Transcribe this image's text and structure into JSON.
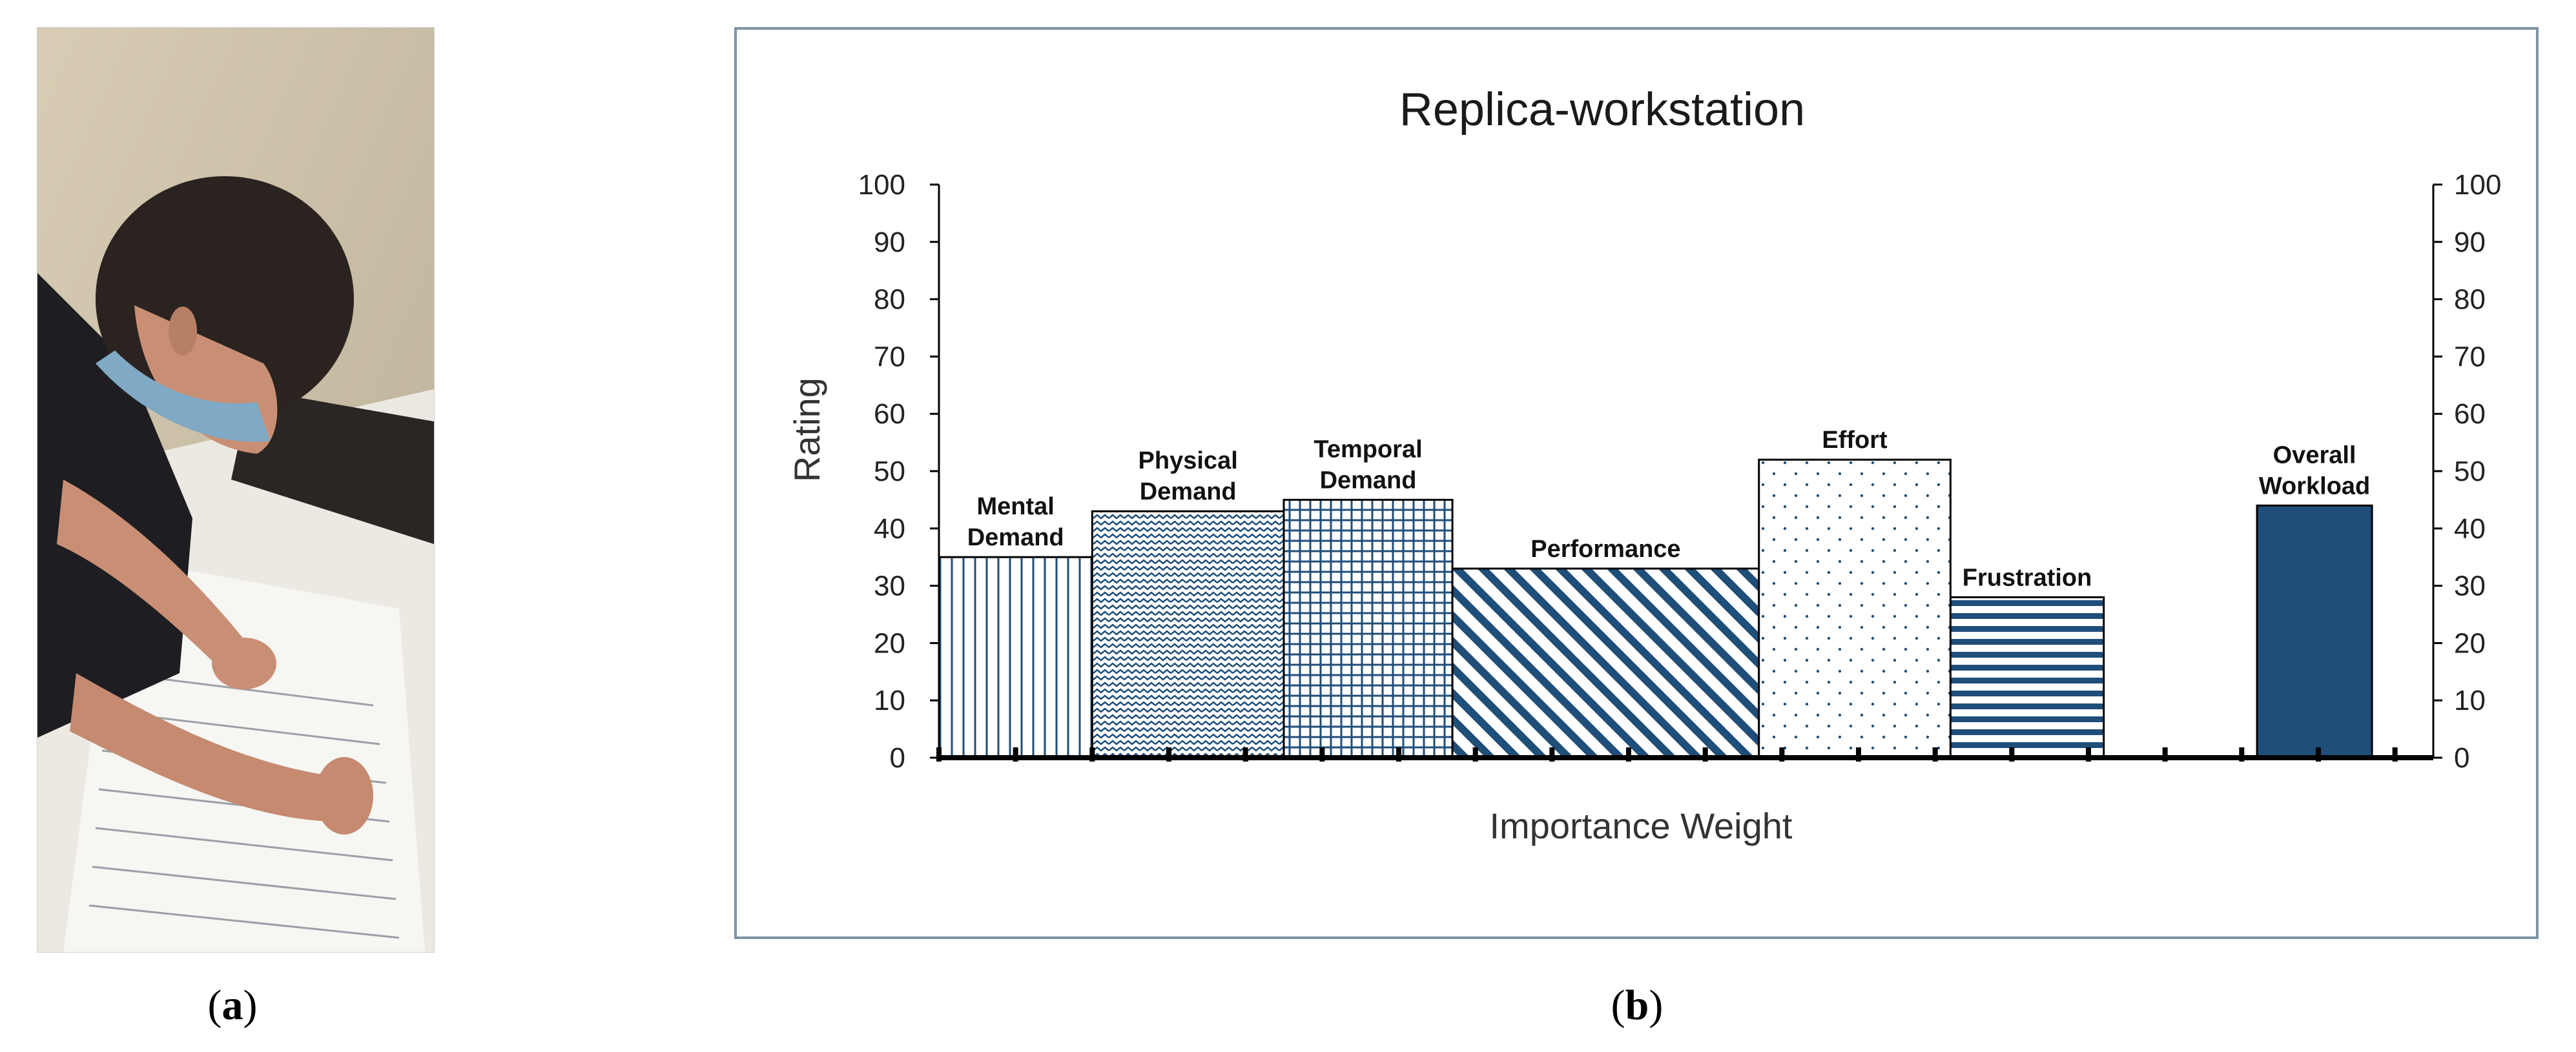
{
  "panels": {
    "a_letter": "a",
    "b_letter": "b"
  },
  "chart_data": {
    "type": "bar",
    "title": "Replica-workstation",
    "ylabel": "Rating",
    "xlabel": "Importance Weight",
    "ylim": [
      0,
      100
    ],
    "yticks": [
      0,
      10,
      20,
      30,
      40,
      50,
      60,
      70,
      80,
      90,
      100
    ],
    "secondary_y_axis": true,
    "bars": [
      {
        "label_lines": [
          "Mental",
          "Demand"
        ],
        "value": 35,
        "weight_start": 0,
        "weight_end": 2,
        "pattern": "vertical-lines"
      },
      {
        "label_lines": [
          "Physical",
          "Demand"
        ],
        "value": 43,
        "weight_start": 2,
        "weight_end": 4.5,
        "pattern": "zigzag"
      },
      {
        "label_lines": [
          "Temporal",
          "Demand"
        ],
        "value": 45,
        "weight_start": 4.5,
        "weight_end": 6.7,
        "pattern": "grid"
      },
      {
        "label_lines": [
          "Performance"
        ],
        "value": 33,
        "weight_start": 6.7,
        "weight_end": 10.7,
        "pattern": "diagonal"
      },
      {
        "label_lines": [
          "Effort"
        ],
        "value": 52,
        "weight_start": 10.7,
        "weight_end": 13.2,
        "pattern": "dots"
      },
      {
        "label_lines": [
          "Frustration"
        ],
        "value": 28,
        "weight_start": 13.2,
        "weight_end": 15.2,
        "pattern": "horizontal-lines"
      },
      {
        "label_lines": [
          "Overall",
          "Workload"
        ],
        "value": 44,
        "weight_start": 17.2,
        "weight_end": 18.7,
        "pattern": "solid"
      }
    ],
    "xlim": [
      0,
      19.5
    ],
    "colors": {
      "bar": "#1f4e79",
      "axis": "#000000"
    }
  }
}
